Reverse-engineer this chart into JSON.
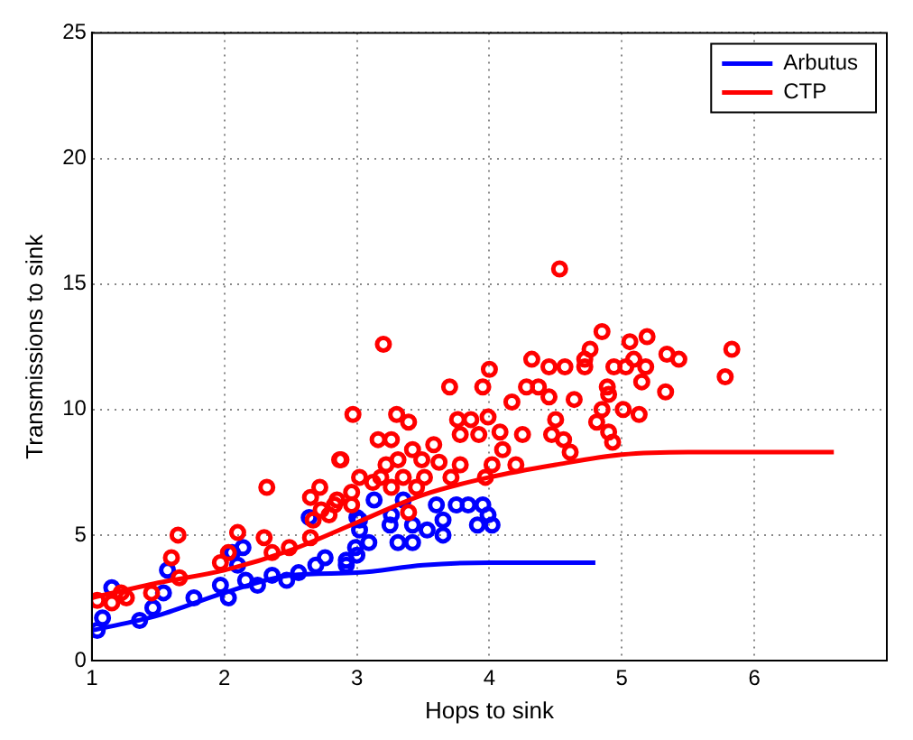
{
  "chart_data": {
    "type": "scatter",
    "xlabel": "Hops to sink",
    "ylabel": "Transmissions to sink",
    "xlim": [
      1,
      7
    ],
    "xticks": [
      1,
      2,
      3,
      4,
      5,
      6
    ],
    "ylim": [
      0,
      25
    ],
    "yticks": [
      0,
      5,
      10,
      15,
      20,
      25
    ],
    "grid": true,
    "legend": "top right",
    "series": [
      {
        "type": "scatter",
        "marker": "circle",
        "color": "#ff0000",
        "x": [
          1.65,
          1.6,
          1.66,
          1.04,
          1.15,
          1.22,
          1.26,
          1.45,
          1.97,
          2.03,
          2.1,
          2.3,
          2.36,
          2.49,
          2.65,
          2.67,
          2.73,
          2.79,
          2.83,
          2.87,
          2.32,
          2.72,
          2.65,
          2.97,
          3.2,
          3.7,
          3.95,
          4.0,
          3.3,
          3.39,
          3.16,
          3.26,
          3.76,
          3.86,
          3.99,
          3.78,
          3.92,
          4.08,
          3.58,
          3.42,
          4.1,
          4.25,
          4.32,
          4.45,
          4.57,
          4.72,
          4.17,
          4.28,
          4.37,
          4.45,
          4.64,
          4.5,
          4.47,
          4.61,
          4.56,
          4.2,
          4.02,
          3.78,
          3.62,
          3.49,
          3.31,
          3.22,
          3.18,
          3.35,
          3.51,
          3.71,
          3.97,
          3.02,
          3.12,
          3.26,
          3.45,
          2.88,
          2.96,
          2.85,
          2.96,
          3.39,
          4.53,
          4.85,
          4.76,
          4.72,
          5.06,
          5.19,
          4.94,
          5.03,
          5.09,
          5.18,
          5.34,
          5.43,
          5.83,
          5.78,
          4.89,
          4.9,
          5.15,
          5.33,
          4.85,
          5.01,
          5.13,
          4.81,
          4.9,
          4.93
        ],
        "values": [
          5.0,
          4.1,
          3.3,
          2.4,
          2.3,
          2.7,
          2.5,
          2.7,
          3.9,
          4.3,
          5.1,
          4.9,
          4.3,
          4.5,
          4.9,
          5.6,
          6.0,
          5.8,
          6.2,
          8.0,
          6.9,
          6.9,
          6.5,
          9.8,
          12.6,
          10.9,
          10.9,
          11.6,
          9.8,
          9.5,
          8.8,
          8.8,
          9.6,
          9.6,
          9.7,
          9.0,
          9.0,
          9.1,
          8.6,
          8.4,
          8.4,
          9.0,
          12.0,
          11.7,
          11.7,
          12.0,
          10.3,
          10.9,
          10.9,
          10.5,
          10.4,
          9.6,
          9.0,
          8.3,
          8.8,
          7.8,
          7.8,
          7.8,
          7.9,
          8.0,
          8.0,
          7.8,
          7.3,
          7.3,
          7.3,
          7.3,
          7.3,
          7.3,
          7.1,
          6.9,
          6.9,
          8.0,
          6.7,
          6.4,
          6.2,
          5.9,
          15.6,
          13.1,
          12.4,
          11.7,
          12.7,
          12.9,
          11.7,
          11.7,
          12.0,
          11.7,
          12.2,
          12.0,
          12.4,
          11.3,
          10.9,
          10.6,
          11.1,
          10.7,
          10.0,
          10.0,
          9.8,
          9.5,
          9.1,
          8.7
        ]
      },
      {
        "type": "scatter",
        "marker": "circle",
        "color": "#0000ff",
        "x": [
          1.04,
          1.08,
          1.15,
          1.36,
          1.46,
          1.57,
          1.54,
          1.77,
          2.03,
          2.06,
          2.14,
          1.97,
          2.16,
          2.25,
          2.36,
          2.47,
          2.56,
          2.69,
          2.64,
          2.76,
          2.92,
          3.02,
          2.99,
          2.1,
          3.0,
          3.02,
          3.13,
          3.26,
          3.35,
          3.25,
          3.42,
          3.53,
          3.6,
          3.75,
          3.84,
          3.95,
          3.99,
          3.91,
          4.02,
          3.65,
          3.65,
          3.31,
          3.42,
          3.09,
          3.0,
          2.92
        ],
        "values": [
          1.2,
          1.7,
          2.9,
          1.6,
          2.1,
          3.6,
          2.7,
          2.5,
          2.5,
          4.3,
          4.5,
          3.0,
          3.2,
          3.0,
          3.4,
          3.2,
          3.5,
          3.8,
          5.7,
          4.1,
          3.8,
          5.6,
          4.5,
          3.8,
          5.7,
          5.2,
          6.4,
          5.8,
          6.4,
          5.4,
          5.4,
          5.2,
          6.2,
          6.2,
          6.2,
          6.2,
          5.8,
          5.4,
          5.4,
          5.6,
          5.0,
          4.7,
          4.7,
          4.7,
          4.2,
          4.0
        ]
      },
      {
        "type": "line",
        "name": "Arbutus",
        "marker": "none",
        "line_style": "solid",
        "color": "#0000ff",
        "x": [
          1,
          1.5,
          2,
          2.5,
          3,
          3.5,
          4,
          4.8
        ],
        "values": [
          1.2,
          1.8,
          2.7,
          3.4,
          3.5,
          3.8,
          3.9,
          3.9
        ]
      },
      {
        "type": "line",
        "name": "CTP",
        "marker": "none",
        "line_style": "solid",
        "color": "#ff0000",
        "x": [
          1,
          1.5,
          2,
          2.5,
          3,
          3.5,
          4,
          4.5,
          5,
          5.5,
          6,
          6.6
        ],
        "values": [
          2.5,
          3.1,
          3.6,
          4.4,
          5.5,
          6.6,
          7.3,
          7.8,
          8.2,
          8.3,
          8.3,
          8.3
        ]
      }
    ]
  }
}
